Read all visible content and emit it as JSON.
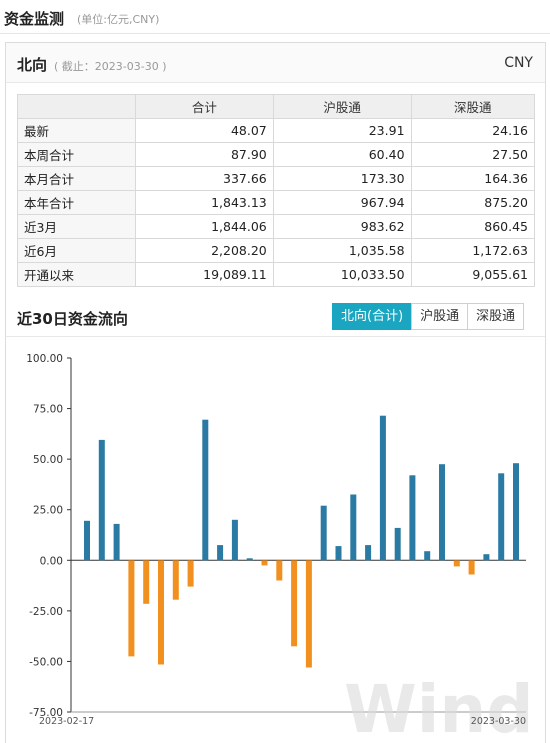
{
  "header": {
    "title": "资金监测",
    "unit_note": "(单位:亿元,CNY)"
  },
  "panel": {
    "title": "北向",
    "date_note": "( 截止：2023-03-30 )",
    "currency": "CNY"
  },
  "table": {
    "columns": [
      "",
      "合计",
      "沪股通",
      "深股通"
    ],
    "rows": [
      {
        "label": "最新",
        "total": "48.07",
        "sh": "23.91",
        "sz": "24.16"
      },
      {
        "label": "本周合计",
        "total": "87.90",
        "sh": "60.40",
        "sz": "27.50"
      },
      {
        "label": "本月合计",
        "total": "337.66",
        "sh": "173.30",
        "sz": "164.36"
      },
      {
        "label": "本年合计",
        "total": "1,843.13",
        "sh": "967.94",
        "sz": "875.20"
      },
      {
        "label": "近3月",
        "total": "1,844.06",
        "sh": "983.62",
        "sz": "860.45"
      },
      {
        "label": "近6月",
        "total": "2,208.20",
        "sh": "1,035.58",
        "sz": "1,172.63"
      },
      {
        "label": "开通以来",
        "total": "19,089.11",
        "sh": "10,033.50",
        "sz": "9,055.61"
      }
    ]
  },
  "flow_section": {
    "title": "近30日资金流向",
    "tabs": [
      {
        "label": "北向(合计)",
        "active": true
      },
      {
        "label": "沪股通",
        "active": false
      },
      {
        "label": "深股通",
        "active": false
      }
    ]
  },
  "watermark": "Wind",
  "chart_data": {
    "type": "bar",
    "x_start_label": "2023-02-17",
    "x_end_label": "2023-03-30",
    "y_ticks": [
      "100.00",
      "75.00",
      "50.00",
      "25.00",
      "0.00",
      "-25.00",
      "-50.00",
      "-75.00"
    ],
    "ylim": [
      -75,
      100
    ],
    "grid": false,
    "positive_color": "#2a7aa3",
    "negative_color": "#f2901f",
    "values": [
      19.5,
      59.5,
      18.0,
      -47.5,
      -21.5,
      -51.5,
      -19.5,
      -13.0,
      69.5,
      7.5,
      20.0,
      1.0,
      -2.5,
      -10.0,
      -42.5,
      -53.0,
      27.0,
      7.0,
      32.5,
      7.5,
      71.5,
      16.0,
      42.0,
      4.5,
      47.5,
      -3.0,
      -7.0,
      3.0,
      43.0,
      48.0
    ]
  }
}
